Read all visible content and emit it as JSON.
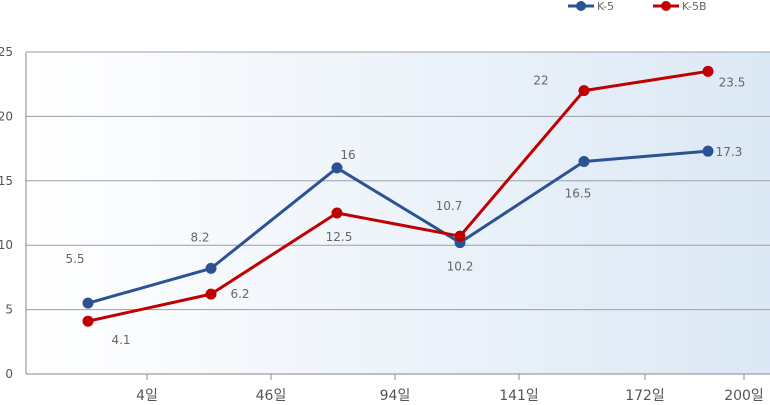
{
  "chart_data": {
    "type": "line",
    "x_axis_labels": [
      "4일",
      "46일",
      "94일",
      "141일",
      "172일",
      "200일"
    ],
    "ylim": [
      0,
      25
    ],
    "yticks": [
      0,
      5,
      10,
      15,
      20,
      25
    ],
    "grid": true,
    "legend_position": "top-right",
    "series": [
      {
        "name": "K-5",
        "color": "#2b5394",
        "values": [
          5.5,
          8.2,
          16,
          10.2,
          16.5,
          17.3
        ],
        "labels": [
          "5.5",
          "8.2",
          "16",
          "10.2",
          "16.5",
          "17.3"
        ]
      },
      {
        "name": "K-5B",
        "color": "#c00000",
        "values": [
          4.1,
          6.2,
          12.5,
          10.7,
          22,
          23.5
        ],
        "labels": [
          "4.1",
          "6.2",
          "12.5",
          "10.7",
          "22",
          "23.5"
        ]
      }
    ]
  }
}
